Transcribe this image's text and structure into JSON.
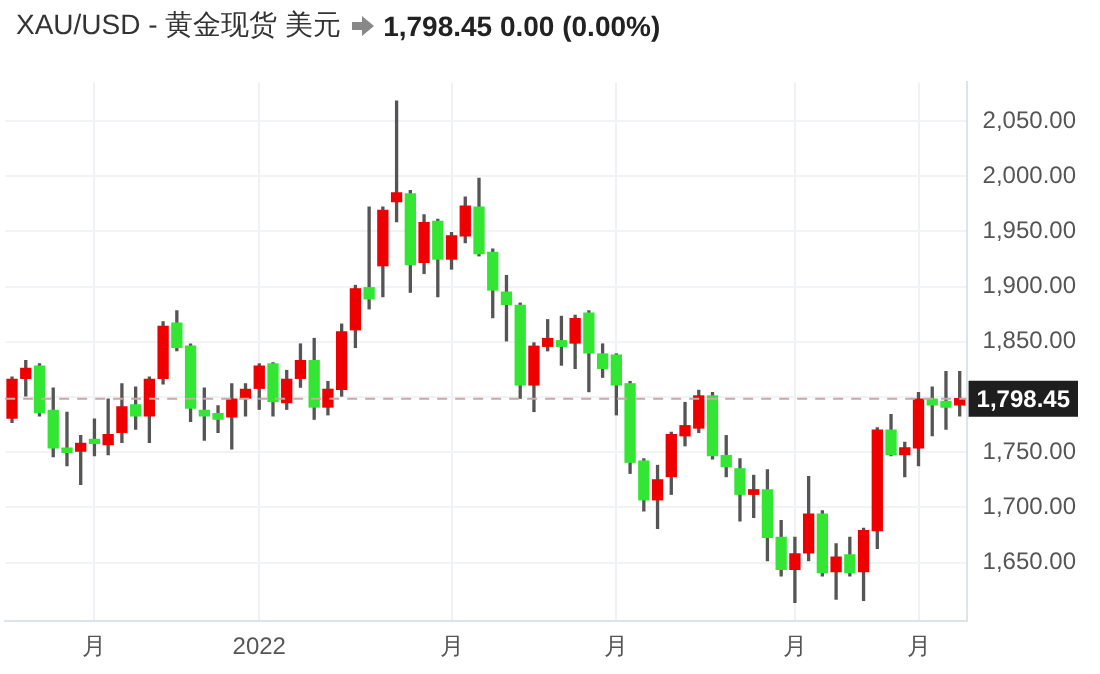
{
  "chart_data": {
    "type": "candlestick",
    "title": "XAU/USD - 黄金现货 美元",
    "subtitle": "1,798.45 0.00 (0.00%)",
    "categories": [
      null,
      null,
      null,
      null,
      null,
      null,
      "月",
      null,
      null,
      null,
      null,
      null,
      null,
      null,
      null,
      null,
      null,
      null,
      "2022",
      null,
      null,
      null,
      null,
      null,
      null,
      null,
      null,
      null,
      null,
      null,
      null,
      null,
      "月",
      null,
      null,
      null,
      null,
      null,
      null,
      null,
      null,
      null,
      null,
      null,
      "月",
      null,
      null,
      null,
      null,
      null,
      null,
      null,
      null,
      null,
      null,
      null,
      null,
      "月",
      null,
      null,
      null,
      null,
      null,
      null,
      null,
      null,
      "月",
      null,
      null,
      null
    ],
    "ohlc": [
      [
        1781,
        1818,
        1777,
        1816
      ],
      [
        1817,
        1833,
        1801,
        1826
      ],
      [
        1828,
        1830,
        1783,
        1786
      ],
      [
        1788,
        1808,
        1746,
        1754
      ],
      [
        1753,
        1786,
        1738,
        1750
      ],
      [
        1751,
        1765,
        1721,
        1758
      ],
      [
        1761,
        1780,
        1747,
        1758
      ],
      [
        1757,
        1798,
        1748,
        1766
      ],
      [
        1768,
        1812,
        1759,
        1791
      ],
      [
        1793,
        1809,
        1771,
        1783
      ],
      [
        1783,
        1818,
        1759,
        1816
      ],
      [
        1817,
        1868,
        1812,
        1864
      ],
      [
        1867,
        1878,
        1842,
        1845
      ],
      [
        1846,
        1848,
        1778,
        1790
      ],
      [
        1788,
        1808,
        1761,
        1783
      ],
      [
        1785,
        1792,
        1768,
        1780
      ],
      [
        1782,
        1812,
        1753,
        1798
      ],
      [
        1799,
        1812,
        1783,
        1807
      ],
      [
        1808,
        1830,
        1789,
        1828
      ],
      [
        1830,
        1831,
        1783,
        1796
      ],
      [
        1795,
        1824,
        1789,
        1816
      ],
      [
        1817,
        1848,
        1809,
        1833
      ],
      [
        1833,
        1853,
        1780,
        1791
      ],
      [
        1791,
        1814,
        1784,
        1807
      ],
      [
        1807,
        1866,
        1801,
        1859
      ],
      [
        1861,
        1901,
        1845,
        1898
      ],
      [
        1899,
        1972,
        1880,
        1889
      ],
      [
        1919,
        1972,
        1891,
        1969
      ],
      [
        1977,
        2068,
        1959,
        1985
      ],
      [
        1984,
        1987,
        1895,
        1920
      ],
      [
        1922,
        1965,
        1912,
        1958
      ],
      [
        1959,
        1961,
        1891,
        1925
      ],
      [
        1925,
        1949,
        1916,
        1946
      ],
      [
        1946,
        1981,
        1940,
        1973
      ],
      [
        1972,
        1998,
        1928,
        1930
      ],
      [
        1931,
        1934,
        1872,
        1897
      ],
      [
        1895,
        1910,
        1851,
        1884
      ],
      [
        1883,
        1885,
        1799,
        1811
      ],
      [
        1811,
        1849,
        1787,
        1846
      ],
      [
        1846,
        1870,
        1842,
        1853
      ],
      [
        1851,
        1873,
        1829,
        1846
      ],
      [
        1849,
        1874,
        1826,
        1871
      ],
      [
        1876,
        1878,
        1805,
        1840
      ],
      [
        1839,
        1848,
        1818,
        1826
      ],
      [
        1838,
        1839,
        1784,
        1811
      ],
      [
        1812,
        1814,
        1731,
        1741
      ],
      [
        1742,
        1744,
        1697,
        1707
      ],
      [
        1707,
        1738,
        1681,
        1725
      ],
      [
        1728,
        1768,
        1712,
        1766
      ],
      [
        1765,
        1795,
        1756,
        1774
      ],
      [
        1772,
        1806,
        1768,
        1801
      ],
      [
        1801,
        1804,
        1744,
        1747
      ],
      [
        1747,
        1765,
        1728,
        1737
      ],
      [
        1735,
        1744,
        1688,
        1712
      ],
      [
        1712,
        1729,
        1691,
        1716
      ],
      [
        1716,
        1734,
        1652,
        1673
      ],
      [
        1673,
        1688,
        1638,
        1644
      ],
      [
        1644,
        1673,
        1614,
        1658
      ],
      [
        1659,
        1728,
        1652,
        1694
      ],
      [
        1694,
        1697,
        1638,
        1641
      ],
      [
        1642,
        1667,
        1617,
        1655
      ],
      [
        1657,
        1673,
        1638,
        1641
      ],
      [
        1642,
        1681,
        1616,
        1679
      ],
      [
        1679,
        1772,
        1663,
        1770
      ],
      [
        1770,
        1784,
        1747,
        1748
      ],
      [
        1748,
        1759,
        1728,
        1754
      ],
      [
        1754,
        1804,
        1738,
        1798
      ],
      [
        1798,
        1809,
        1765,
        1793
      ],
      [
        1796,
        1823,
        1771,
        1791
      ],
      [
        1793,
        1823,
        1783,
        1798.45
      ]
    ],
    "colors": [
      "#ee0000",
      "#ee0000",
      "#33e633",
      "#33e633",
      "#33e633",
      "#ee0000",
      "#33e633",
      "#ee0000",
      "#ee0000",
      "#33e633",
      "#ee0000",
      "#ee0000",
      "#33e633",
      "#33e633",
      "#33e633",
      "#33e633",
      "#ee0000",
      "#ee0000",
      "#ee0000",
      "#33e633",
      "#ee0000",
      "#ee0000",
      "#33e633",
      "#ee0000",
      "#ee0000",
      "#ee0000",
      "#33e633",
      "#ee0000",
      "#ee0000",
      "#33e633",
      "#ee0000",
      "#33e633",
      "#ee0000",
      "#ee0000",
      "#33e633",
      "#33e633",
      "#33e633",
      "#33e633",
      "#ee0000",
      "#ee0000",
      "#33e633",
      "#ee0000",
      "#33e633",
      "#33e633",
      "#33e633",
      "#33e633",
      "#33e633",
      "#ee0000",
      "#ee0000",
      "#ee0000",
      "#ee0000",
      "#33e633",
      "#33e633",
      "#33e633",
      "#ee0000",
      "#33e633",
      "#33e633",
      "#ee0000",
      "#ee0000",
      "#33e633",
      "#ee0000",
      "#33e633",
      "#ee0000",
      "#ee0000",
      "#33e633",
      "#ee0000",
      "#ee0000",
      "#33e633",
      "#33e633",
      "#ee0000"
    ],
    "ylim": [
      1597,
      2085
    ],
    "yticks": [
      {
        "value": 1650,
        "label": "1,650.00"
      },
      {
        "value": 1700,
        "label": "1,700.00"
      },
      {
        "value": 1750,
        "label": "1,750.00"
      },
      {
        "value": 1800,
        "label": null
      },
      {
        "value": 1850,
        "label": "1,850.00"
      },
      {
        "value": 1900,
        "label": "1,900.00"
      },
      {
        "value": 1950,
        "label": "1,950.00"
      },
      {
        "value": 2000,
        "label": "2,000.00"
      },
      {
        "value": 2050,
        "label": "2,050.00"
      }
    ],
    "ref_lines": [
      {
        "axis": "y",
        "value": 1798.45,
        "label": "1,798.45",
        "color": "#c8a8a8",
        "line_style": "dashed"
      }
    ],
    "grid": true,
    "legend": false
  }
}
